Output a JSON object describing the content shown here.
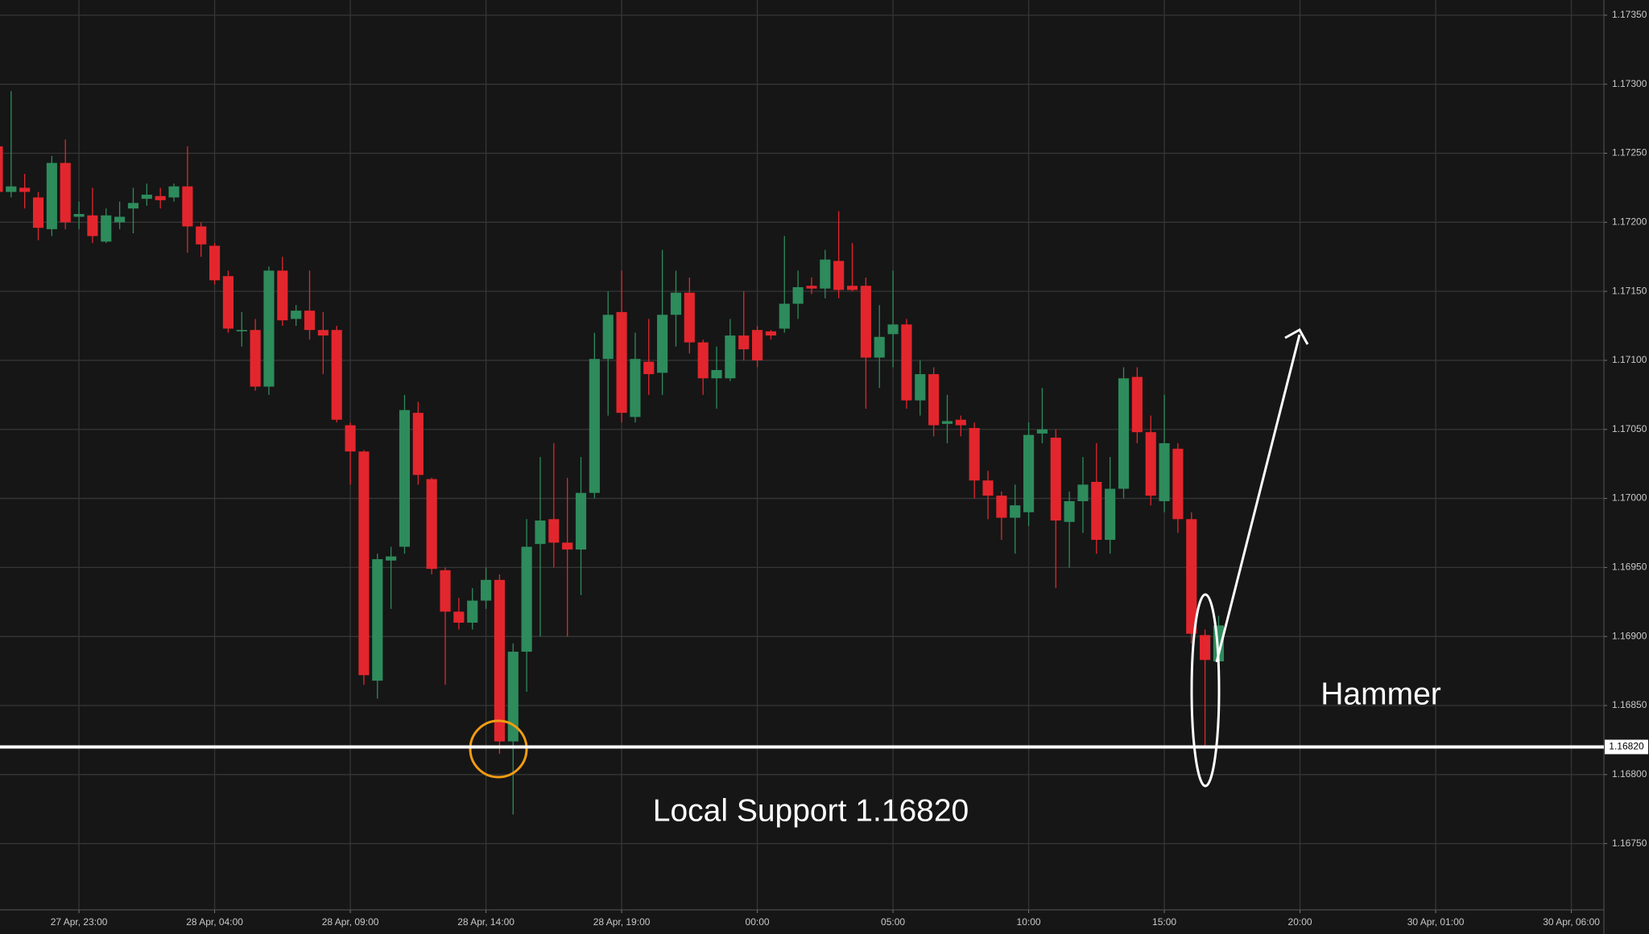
{
  "chart_data": {
    "type": "candlestick",
    "up_color": "#2e8b5c",
    "down_color": "#e3262d",
    "grid": true,
    "xlim": [
      -2.91,
      56.2
    ],
    "ylim": [
      1.16702,
      1.17361
    ],
    "xticks": [
      {
        "value": 0,
        "label": "27 Apr, 23:00"
      },
      {
        "value": 5,
        "label": "28 Apr, 04:00"
      },
      {
        "value": 10,
        "label": "28 Apr, 09:00"
      },
      {
        "value": 15,
        "label": "28 Apr, 14:00"
      },
      {
        "value": 20,
        "label": "28 Apr, 19:00"
      },
      {
        "value": 25,
        "label": "00:00"
      },
      {
        "value": 30,
        "label": "05:00"
      },
      {
        "value": 35,
        "label": "10:00"
      },
      {
        "value": 40,
        "label": "15:00"
      },
      {
        "value": 45,
        "label": "20:00"
      },
      {
        "value": 50,
        "label": "30 Apr, 01:00"
      },
      {
        "value": 55,
        "label": "30 Apr, 06:00"
      }
    ],
    "yticks": [
      {
        "value": 1.1675,
        "label": "1.16750"
      },
      {
        "value": 1.168,
        "label": "1.16800"
      },
      {
        "value": 1.1685,
        "label": "1.16850"
      },
      {
        "value": 1.169,
        "label": "1.16900"
      },
      {
        "value": 1.1695,
        "label": "1.16950"
      },
      {
        "value": 1.17,
        "label": "1.17000"
      },
      {
        "value": 1.1705,
        "label": "1.17050"
      },
      {
        "value": 1.171,
        "label": "1.17100"
      },
      {
        "value": 1.1715,
        "label": "1.17150"
      },
      {
        "value": 1.172,
        "label": "1.17200"
      },
      {
        "value": 1.1725,
        "label": "1.17250"
      },
      {
        "value": 1.173,
        "label": "1.17300"
      },
      {
        "value": 1.1735,
        "label": "1.17350"
      }
    ],
    "support": {
      "value": 1.1682,
      "label": "1.16820"
    },
    "annotations": [
      {
        "text": "Local Support 1.16820"
      },
      {
        "text": "Hammer"
      }
    ],
    "x": [
      -3,
      -2.5,
      -2,
      -1.5,
      -1,
      -0.5,
      0,
      0.5,
      1,
      1.5,
      2,
      2.5,
      3,
      3.5,
      4,
      4.5,
      5,
      5.5,
      6,
      6.5,
      7,
      7.5,
      8,
      8.5,
      9,
      9.5,
      10,
      10.5,
      11,
      11.5,
      12,
      12.5,
      13,
      13.5,
      14,
      14.5,
      15,
      15.5,
      16,
      16.5,
      17,
      17.5,
      18,
      18.5,
      19,
      19.5,
      20,
      20.5,
      21,
      21.5,
      22,
      22.5,
      23,
      23.5,
      24,
      24.5,
      25,
      25.5,
      26,
      26.5,
      27,
      27.5,
      28,
      28.5,
      29,
      29.5,
      30,
      30.5,
      31,
      31.5,
      32,
      32.5,
      33,
      33.5,
      34,
      34.5,
      35,
      35.5,
      36,
      36.5,
      37,
      37.5,
      38,
      38.5,
      39,
      39.5,
      40,
      40.5,
      41,
      41.5,
      42
    ],
    "open": [
      1.17255,
      1.17222,
      1.17225,
      1.17218,
      1.17195,
      1.17243,
      1.17204,
      1.17205,
      1.17186,
      1.172,
      1.1721,
      1.17217,
      1.17219,
      1.17218,
      1.17226,
      1.17197,
      1.17183,
      1.17161,
      1.17121,
      1.17122,
      1.17081,
      1.17165,
      1.1713,
      1.17136,
      1.17122,
      1.17122,
      1.17053,
      1.17034,
      1.16868,
      1.16955,
      1.16965,
      1.17062,
      1.17014,
      1.16948,
      1.16918,
      1.1691,
      1.16926,
      1.16941,
      1.16824,
      1.16889,
      1.16967,
      1.16985,
      1.16968,
      1.16963,
      1.17004,
      1.17101,
      1.17135,
      1.17059,
      1.17099,
      1.17091,
      1.17133,
      1.17149,
      1.17113,
      1.17087,
      1.17087,
      1.17118,
      1.17122,
      1.17121,
      1.17123,
      1.17141,
      1.17154,
      1.17152,
      1.17172,
      1.17154,
      1.17154,
      1.17102,
      1.17119,
      1.17126,
      1.17071,
      1.1709,
      1.17054,
      1.17057,
      1.17051,
      1.17013,
      1.17002,
      1.16986,
      1.1699,
      1.17047,
      1.17044,
      1.16983,
      1.16998,
      1.17012,
      1.1697,
      1.17007,
      1.17088,
      1.17048,
      1.16998,
      1.17036,
      1.16985,
      1.16901,
      1.16882
    ],
    "high": [
      1.17258,
      1.17295,
      1.17235,
      1.17222,
      1.17248,
      1.1726,
      1.17215,
      1.17225,
      1.1721,
      1.17215,
      1.17225,
      1.17228,
      1.17225,
      1.17228,
      1.17255,
      1.172,
      1.17185,
      1.17165,
      1.17135,
      1.1713,
      1.17168,
      1.17175,
      1.1714,
      1.17165,
      1.17135,
      1.17125,
      1.17055,
      1.17035,
      1.1696,
      1.16965,
      1.17075,
      1.1707,
      1.17015,
      1.1695,
      1.16928,
      1.16935,
      1.1695,
      1.16945,
      1.16895,
      1.16985,
      1.1703,
      1.1704,
      1.17015,
      1.1703,
      1.1712,
      1.1715,
      1.17165,
      1.1712,
      1.1713,
      1.1718,
      1.17165,
      1.1716,
      1.17115,
      1.1711,
      1.1713,
      1.1715,
      1.17125,
      1.17122,
      1.1719,
      1.17165,
      1.1716,
      1.1718,
      1.17208,
      1.17185,
      1.1716,
      1.1714,
      1.17165,
      1.1713,
      1.171,
      1.17095,
      1.17075,
      1.1706,
      1.17055,
      1.1702,
      1.17005,
      1.1701,
      1.17055,
      1.1708,
      1.1705,
      1.17005,
      1.1703,
      1.1704,
      1.1703,
      1.17095,
      1.17095,
      1.1706,
      1.17075,
      1.1704,
      1.1699,
      1.16905,
      1.16915
    ],
    "low": [
      1.17215,
      1.17218,
      1.1721,
      1.17187,
      1.1719,
      1.17195,
      1.17195,
      1.17185,
      1.17185,
      1.17195,
      1.17192,
      1.17212,
      1.1721,
      1.17215,
      1.17178,
      1.17175,
      1.17155,
      1.1712,
      1.1711,
      1.17078,
      1.17075,
      1.17125,
      1.17125,
      1.17115,
      1.1709,
      1.17055,
      1.1701,
      1.16865,
      1.16855,
      1.1692,
      1.1696,
      1.1701,
      1.16945,
      1.16865,
      1.16905,
      1.16905,
      1.1692,
      1.16815,
      1.16771,
      1.1686,
      1.169,
      1.1695,
      1.169,
      1.1693,
      1.17,
      1.1706,
      1.17055,
      1.17055,
      1.17075,
      1.17075,
      1.1711,
      1.17105,
      1.17075,
      1.17065,
      1.17085,
      1.171,
      1.17095,
      1.17115,
      1.1712,
      1.1713,
      1.17148,
      1.17145,
      1.17145,
      1.1715,
      1.17065,
      1.1708,
      1.17095,
      1.17065,
      1.1706,
      1.17045,
      1.1704,
      1.17045,
      1.17,
      1.16985,
      1.1697,
      1.1696,
      1.1698,
      1.1704,
      1.16935,
      1.1695,
      1.16975,
      1.1696,
      1.1696,
      1.17,
      1.1704,
      1.16995,
      1.1699,
      1.16975,
      1.16895,
      1.1682,
      1.16878
    ],
    "close": [
      1.17222,
      1.17226,
      1.17222,
      1.17196,
      1.17243,
      1.172,
      1.17206,
      1.1719,
      1.17205,
      1.17204,
      1.17214,
      1.1722,
      1.17216,
      1.17226,
      1.17197,
      1.17184,
      1.17158,
      1.17123,
      1.17122,
      1.17081,
      1.17165,
      1.17129,
      1.17136,
      1.17122,
      1.17118,
      1.17057,
      1.17034,
      1.16872,
      1.16956,
      1.16958,
      1.17064,
      1.17017,
      1.16949,
      1.16918,
      1.1691,
      1.16926,
      1.16941,
      1.16824,
      1.16889,
      1.16965,
      1.16984,
      1.16968,
      1.16963,
      1.17004,
      1.17101,
      1.17133,
      1.17062,
      1.17101,
      1.1709,
      1.17133,
      1.17149,
      1.17113,
      1.17087,
      1.17093,
      1.17118,
      1.17108,
      1.171,
      1.17118,
      1.17141,
      1.17153,
      1.17152,
      1.17173,
      1.17151,
      1.17151,
      1.17102,
      1.17117,
      1.17126,
      1.17071,
      1.1709,
      1.17053,
      1.17056,
      1.17053,
      1.17013,
      1.17002,
      1.16986,
      1.16995,
      1.17046,
      1.1705,
      1.16984,
      1.16998,
      1.1701,
      1.1697,
      1.17007,
      1.17087,
      1.17048,
      1.17002,
      1.1704,
      1.16985,
      1.16902,
      1.16883,
      1.16908
    ]
  }
}
